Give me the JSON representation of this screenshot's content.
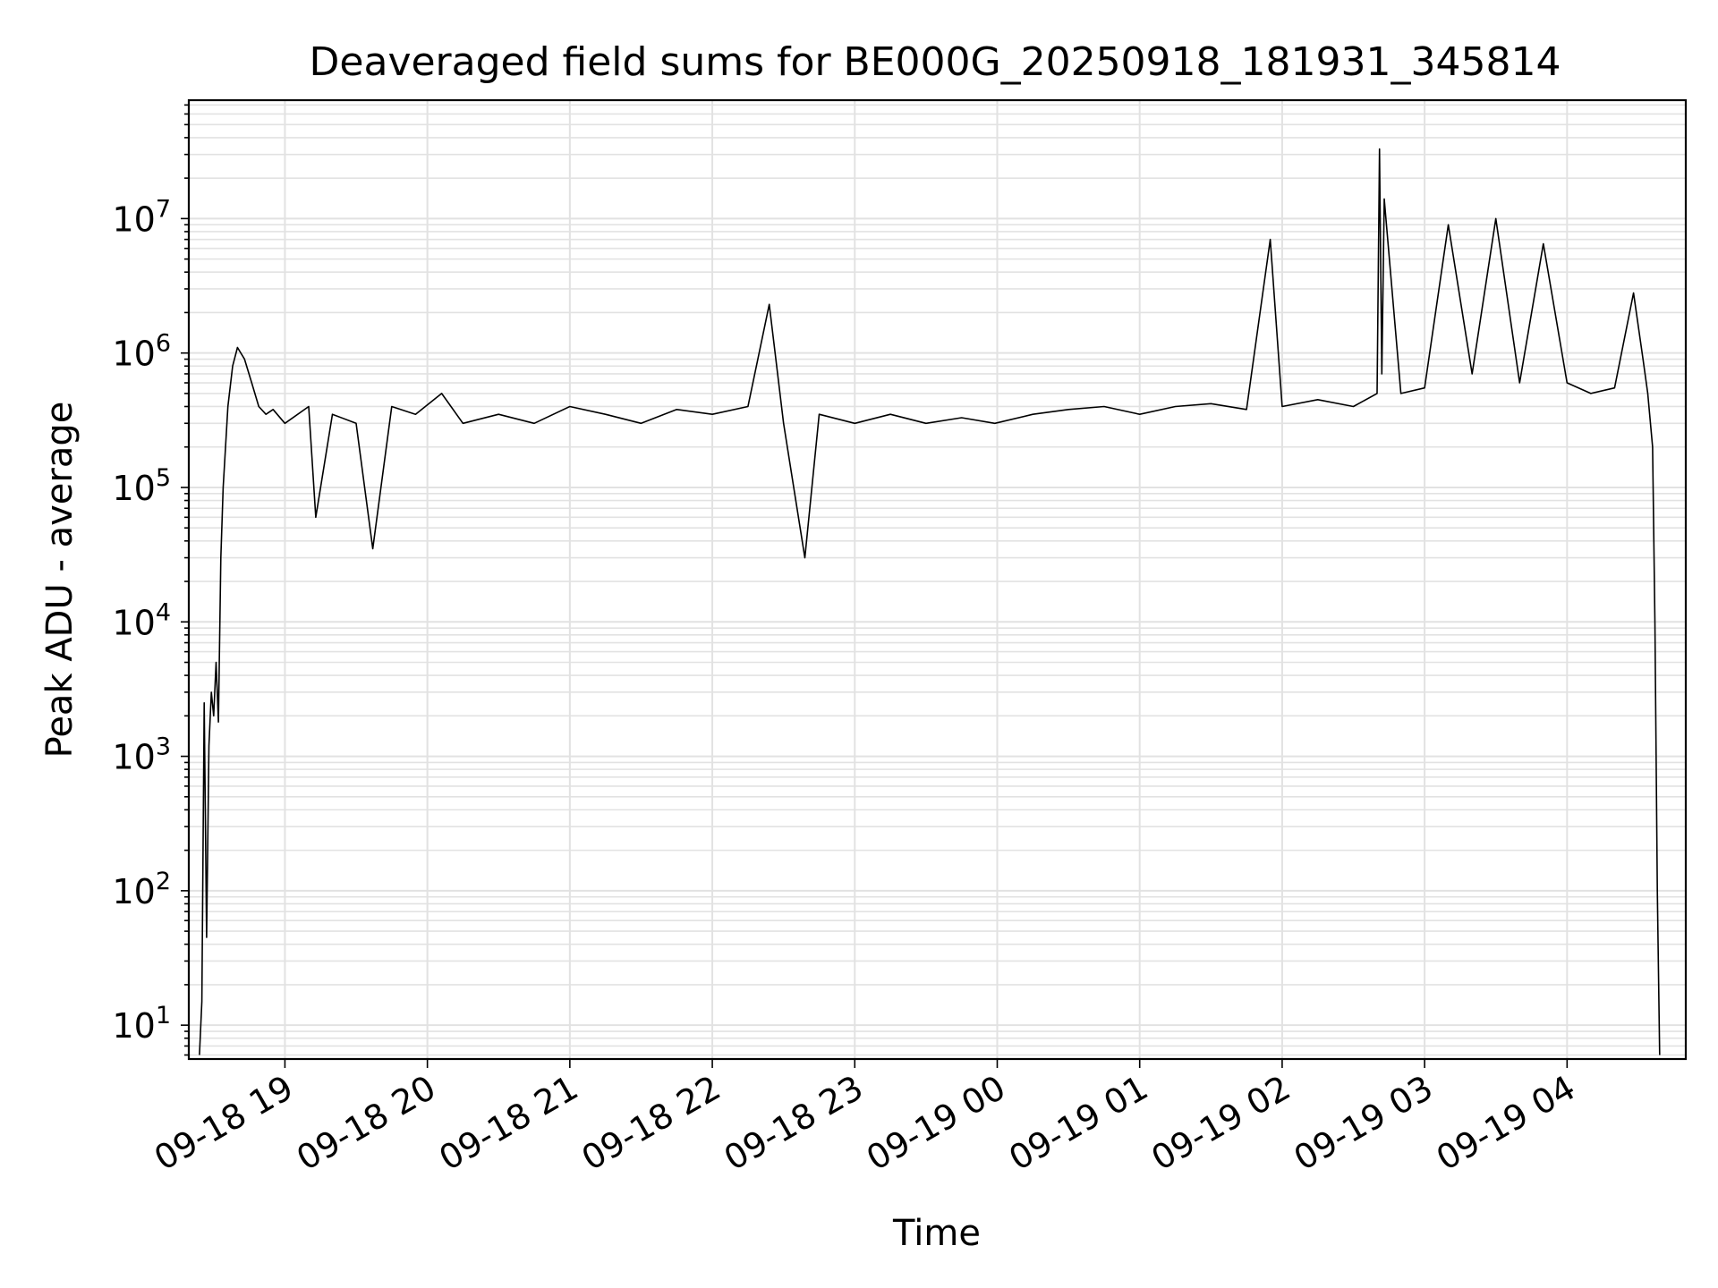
{
  "chart_data": {
    "type": "line",
    "title": "Deaveraged field sums for BE000G_20250918_181931_345814",
    "xlabel": "Time",
    "ylabel": "Peak ADU - average",
    "yscale": "log",
    "grid": true,
    "xlim": [
      "2025-09-18 18:19:31",
      "2025-09-19 04:50:00"
    ],
    "ylim": [
      5.6,
      76000000
    ],
    "x_ticks": [
      {
        "time": "2025-09-18 19:00",
        "label": "09-18 19"
      },
      {
        "time": "2025-09-18 20:00",
        "label": "09-18 20"
      },
      {
        "time": "2025-09-18 21:00",
        "label": "09-18 21"
      },
      {
        "time": "2025-09-18 22:00",
        "label": "09-18 22"
      },
      {
        "time": "2025-09-18 23:00",
        "label": "09-18 23"
      },
      {
        "time": "2025-09-19 00:00",
        "label": "09-19 00"
      },
      {
        "time": "2025-09-19 01:00",
        "label": "09-19 01"
      },
      {
        "time": "2025-09-19 02:00",
        "label": "09-19 02"
      },
      {
        "time": "2025-09-19 03:00",
        "label": "09-19 03"
      },
      {
        "time": "2025-09-19 04:00",
        "label": "09-19 04"
      }
    ],
    "y_ticks": [
      {
        "value": 10,
        "base": "10",
        "exp": "1"
      },
      {
        "value": 100,
        "base": "10",
        "exp": "2"
      },
      {
        "value": 1000,
        "base": "10",
        "exp": "3"
      },
      {
        "value": 10000,
        "base": "10",
        "exp": "4"
      },
      {
        "value": 100000,
        "base": "10",
        "exp": "5"
      },
      {
        "value": 1000000,
        "base": "10",
        "exp": "6"
      },
      {
        "value": 10000000,
        "base": "10",
        "exp": "7"
      }
    ],
    "series": [
      {
        "color": "#000000",
        "x": [
          "2025-09-18 18:24",
          "2025-09-18 18:25",
          "2025-09-18 18:26",
          "2025-09-18 18:27",
          "2025-09-18 18:28",
          "2025-09-18 18:29",
          "2025-09-18 18:30",
          "2025-09-18 18:31",
          "2025-09-18 18:32",
          "2025-09-18 18:33",
          "2025-09-18 18:34",
          "2025-09-18 18:36",
          "2025-09-18 18:38",
          "2025-09-18 18:40",
          "2025-09-18 18:43",
          "2025-09-18 18:46",
          "2025-09-18 18:49",
          "2025-09-18 18:52",
          "2025-09-18 18:55",
          "2025-09-18 19:00",
          "2025-09-18 19:10",
          "2025-09-18 19:13",
          "2025-09-18 19:20",
          "2025-09-18 19:30",
          "2025-09-18 19:37",
          "2025-09-18 19:45",
          "2025-09-18 19:55",
          "2025-09-18 20:06",
          "2025-09-18 20:15",
          "2025-09-18 20:30",
          "2025-09-18 20:45",
          "2025-09-18 21:00",
          "2025-09-18 21:15",
          "2025-09-18 21:30",
          "2025-09-18 21:45",
          "2025-09-18 22:00",
          "2025-09-18 22:15",
          "2025-09-18 22:24",
          "2025-09-18 22:30",
          "2025-09-18 22:39",
          "2025-09-18 22:45",
          "2025-09-18 23:00",
          "2025-09-18 23:15",
          "2025-09-18 23:30",
          "2025-09-18 23:45",
          "2025-09-18 23:59",
          "2025-09-19 00:15",
          "2025-09-19 00:30",
          "2025-09-19 00:45",
          "2025-09-19 01:00",
          "2025-09-19 01:15",
          "2025-09-19 01:30",
          "2025-09-19 01:45",
          "2025-09-19 01:55",
          "2025-09-19 02:00",
          "2025-09-19 02:15",
          "2025-09-19 02:30",
          "2025-09-19 02:40",
          "2025-09-19 02:41",
          "2025-09-19 02:42",
          "2025-09-19 02:43",
          "2025-09-19 02:50",
          "2025-09-19 03:00",
          "2025-09-19 03:10",
          "2025-09-19 03:20",
          "2025-09-19 03:30",
          "2025-09-19 03:40",
          "2025-09-19 03:50",
          "2025-09-19 04:00",
          "2025-09-19 04:10",
          "2025-09-19 04:20",
          "2025-09-19 04:28",
          "2025-09-19 04:32",
          "2025-09-19 04:34",
          "2025-09-19 04:36",
          "2025-09-19 04:37",
          "2025-09-19 04:38",
          "2025-09-19 04:39"
        ],
        "y": [
          6,
          15,
          2500,
          45,
          1200,
          3000,
          2000,
          5000,
          1800,
          30000,
          100000,
          400000,
          800000,
          1100000,
          900000,
          600000,
          400000,
          350000,
          380000,
          300000,
          400000,
          60000,
          350000,
          300000,
          35000,
          400000,
          350000,
          500000,
          300000,
          350000,
          300000,
          400000,
          350000,
          300000,
          380000,
          350000,
          400000,
          2300000,
          300000,
          30000,
          350000,
          300000,
          350000,
          300000,
          330000,
          300000,
          350000,
          380000,
          400000,
          350000,
          400000,
          420000,
          380000,
          7000000,
          400000,
          450000,
          400000,
          500000,
          33000000,
          700000,
          14000000,
          500000,
          550000,
          9000000,
          700000,
          10000000,
          600000,
          6500000,
          600000,
          500000,
          550000,
          2800000,
          900000,
          500000,
          200000,
          10000,
          100,
          6
        ]
      }
    ]
  }
}
